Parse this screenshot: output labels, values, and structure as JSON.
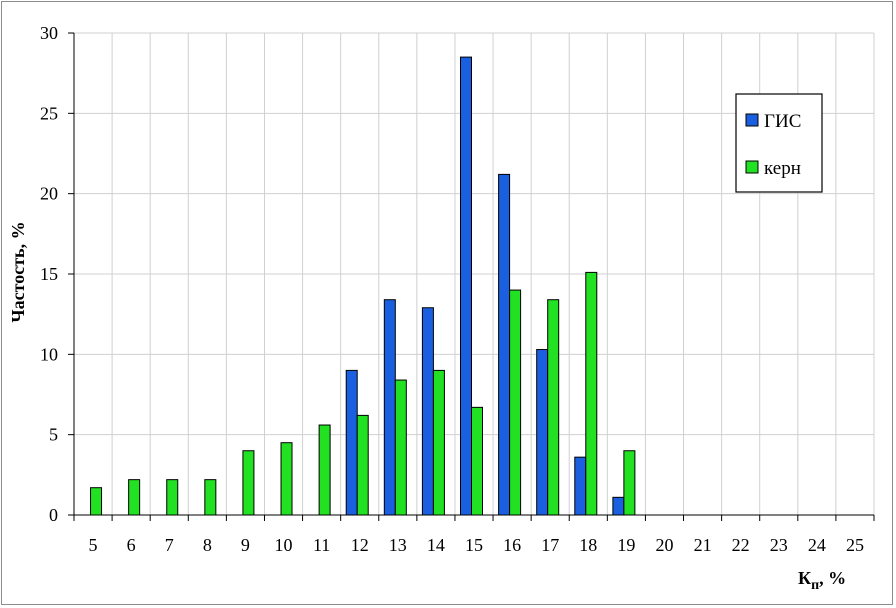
{
  "chart_data": {
    "type": "bar",
    "categories": [
      "5",
      "6",
      "7",
      "8",
      "9",
      "10",
      "11",
      "12",
      "13",
      "14",
      "15",
      "16",
      "17",
      "18",
      "19",
      "20",
      "21",
      "22",
      "23",
      "24",
      "25"
    ],
    "series": [
      {
        "name": "ГИС",
        "color": "#1a5fe0",
        "values": [
          0,
          0,
          0,
          0,
          0,
          0,
          0,
          9.0,
          13.4,
          12.9,
          28.5,
          21.2,
          10.3,
          3.6,
          1.1,
          0,
          0,
          0,
          0,
          0,
          0
        ]
      },
      {
        "name": "керн",
        "color": "#22e022",
        "values": [
          1.7,
          2.2,
          2.2,
          2.2,
          4.0,
          4.5,
          5.6,
          6.2,
          8.4,
          9.0,
          6.7,
          14.0,
          13.4,
          15.1,
          4.0,
          0,
          0,
          0,
          0,
          0,
          0
        ]
      }
    ],
    "ylabel": "Частость, %",
    "xlabel": "Кп, %",
    "ylim": [
      0,
      30
    ],
    "yticks": [
      0,
      5,
      10,
      15,
      20,
      25,
      30
    ],
    "grid": true,
    "legend_position": "top-right"
  }
}
